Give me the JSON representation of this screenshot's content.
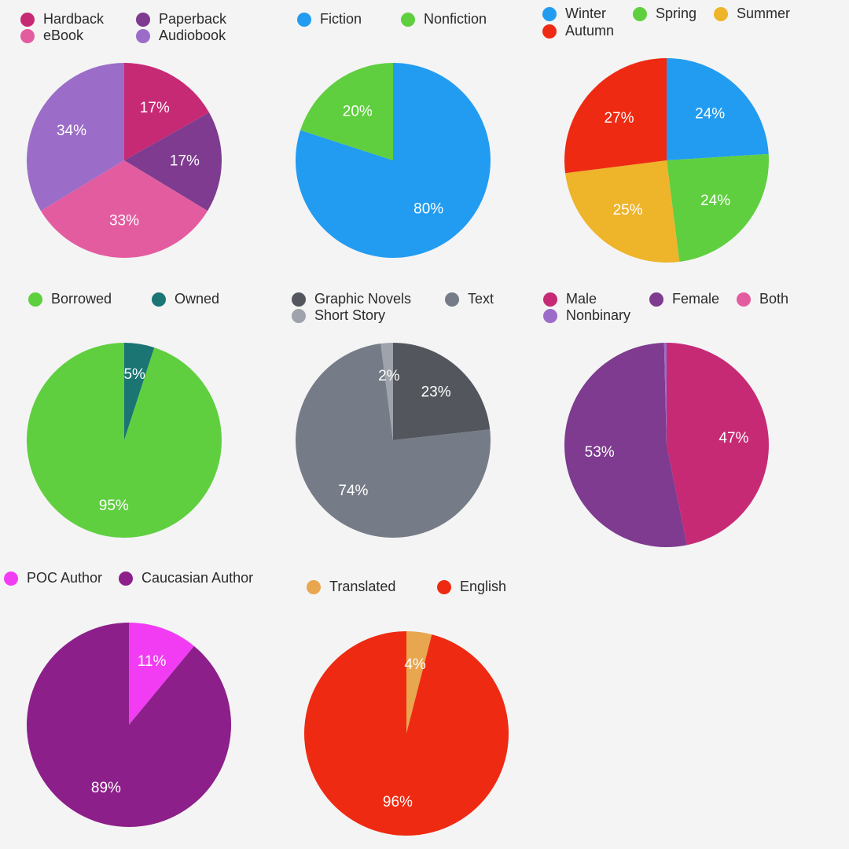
{
  "chart_data": [
    {
      "type": "pie",
      "slices": [
        {
          "label": "Hardback",
          "value": 17,
          "text": "17%",
          "color": "#c72a74"
        },
        {
          "label": "Paperback",
          "value": 17,
          "text": "17%",
          "color": "#7e3b8f"
        },
        {
          "label": "eBook",
          "value": 33,
          "text": "33%",
          "color": "#e35ca0"
        },
        {
          "label": "Audiobook",
          "value": 34,
          "text": "34%",
          "color": "#9b6dc8"
        }
      ]
    },
    {
      "type": "pie",
      "slices": [
        {
          "label": "Fiction",
          "value": 80,
          "text": "80%",
          "color": "#229cf0"
        },
        {
          "label": "Nonfiction",
          "value": 20,
          "text": "20%",
          "color": "#5fcf3f"
        }
      ]
    },
    {
      "type": "pie",
      "slices": [
        {
          "label": "Winter",
          "value": 24,
          "text": "24%",
          "color": "#229cf0"
        },
        {
          "label": "Spring",
          "value": 24,
          "text": "24%",
          "color": "#5fcf3f"
        },
        {
          "label": "Summer",
          "value": 25,
          "text": "25%",
          "color": "#eeb42a"
        },
        {
          "label": "Autumn",
          "value": 27,
          "text": "27%",
          "color": "#ef2a12"
        }
      ]
    },
    {
      "type": "pie",
      "slices": [
        {
          "label": "Owned",
          "value": 5,
          "text": "5%",
          "color": "#1a7573"
        },
        {
          "label": "Borrowed",
          "value": 95,
          "text": "95%",
          "color": "#5fcf3f"
        }
      ],
      "legend_order": [
        "Borrowed",
        "Owned"
      ]
    },
    {
      "type": "pie",
      "slices": [
        {
          "label": "Graphic Novels",
          "value": 23,
          "text": "23%",
          "color": "#53575d"
        },
        {
          "label": "Text",
          "value": 74,
          "text": "74%",
          "color": "#767c87"
        },
        {
          "label": "Short Story",
          "value": 2,
          "text": "2%",
          "color": "#9fa3ab"
        }
      ]
    },
    {
      "type": "pie",
      "slices": [
        {
          "label": "Male",
          "value": 47,
          "text": "47%",
          "color": "#c72a74"
        },
        {
          "label": "Female",
          "value": 53,
          "text": "53%",
          "color": "#7e3b8f"
        },
        {
          "label": "Both",
          "value": 0,
          "text": "",
          "color": "#e35ca0"
        },
        {
          "label": "Nonbinary",
          "value": 0.4,
          "text": "",
          "color": "#9b6dc8"
        }
      ]
    },
    {
      "type": "pie",
      "slices": [
        {
          "label": "POC Author",
          "value": 11,
          "text": "11%",
          "color": "#f23cf3"
        },
        {
          "label": "Caucasian Author",
          "value": 89,
          "text": "89%",
          "color": "#8c1f8a"
        }
      ]
    },
    {
      "type": "pie",
      "slices": [
        {
          "label": "Translated",
          "value": 4,
          "text": "4%",
          "color": "#e8a64e"
        },
        {
          "label": "English",
          "value": 96,
          "text": "96%",
          "color": "#ef2a12"
        }
      ]
    }
  ]
}
